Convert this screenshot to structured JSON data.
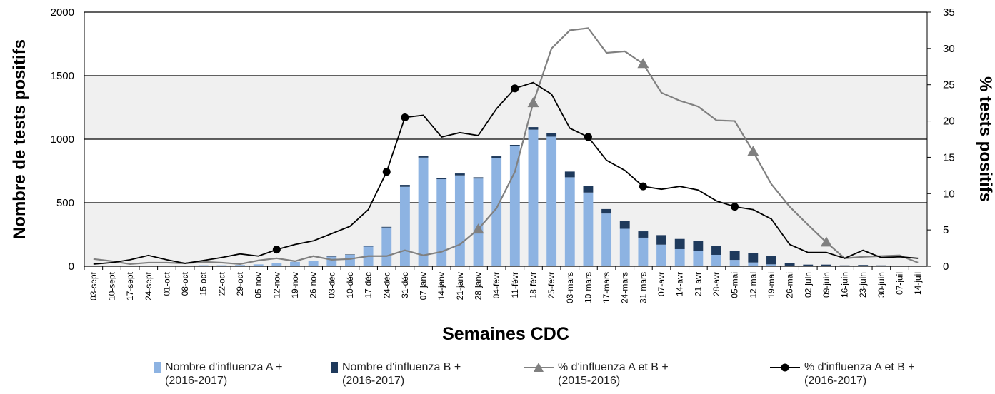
{
  "chart_data": {
    "type": "bar",
    "stacked": true,
    "x_label": "Semaines CDC",
    "y_label": "Nombre de tests positifs",
    "y2_label": "% tests positifs",
    "categories": [
      "03-sept",
      "10-sept",
      "17-sept",
      "24-sept",
      "01-oct",
      "08-oct",
      "15-oct",
      "22-oct",
      "29-oct",
      "05-nov",
      "12-nov",
      "19-nov",
      "26-nov",
      "03-déc",
      "10-déc",
      "17-déc",
      "24-déc",
      "31-déc",
      "07-janv",
      "14-janv",
      "21-janv",
      "28-janv",
      "04-févr",
      "11-févr",
      "18-févr",
      "25-févr",
      "03-mars",
      "10-mars",
      "17-mars",
      "24-mars",
      "31-mars",
      "07-avr",
      "14-avr",
      "21-avr",
      "28-avr",
      "05-mai",
      "12-mai",
      "19-mai",
      "26-mai",
      "02-juin",
      "09-juin",
      "16-juin",
      "23-juin",
      "30-juin",
      "07-juil",
      "14-juil"
    ],
    "ylim": [
      0,
      2000
    ],
    "yticks": [
      0,
      500,
      1000,
      1500,
      2000
    ],
    "y2lim": [
      0,
      35
    ],
    "y2ticks": [
      0,
      5,
      10,
      15,
      20,
      25,
      30,
      35
    ],
    "grid": true,
    "band_color": "#f0f0f0",
    "series": [
      {
        "name": "Nombre d'influenza A + (2016-2017)",
        "type": "bar",
        "color": "#8db3e2",
        "values": [
          2,
          3,
          3,
          5,
          5,
          5,
          8,
          8,
          10,
          15,
          25,
          35,
          45,
          75,
          90,
          155,
          305,
          625,
          855,
          685,
          715,
          690,
          850,
          945,
          1075,
          1020,
          700,
          580,
          415,
          295,
          225,
          170,
          135,
          120,
          90,
          50,
          30,
          15,
          5,
          3,
          3,
          2,
          2,
          2,
          2,
          2
        ]
      },
      {
        "name": "Nombre d'influenza B + (2016-2017)",
        "type": "bar",
        "color": "#1f3a5c",
        "values": [
          0,
          0,
          0,
          0,
          0,
          0,
          0,
          0,
          0,
          0,
          0,
          0,
          0,
          3,
          3,
          5,
          5,
          15,
          10,
          10,
          15,
          10,
          15,
          10,
          20,
          25,
          45,
          50,
          35,
          60,
          50,
          75,
          80,
          80,
          70,
          70,
          75,
          65,
          20,
          10,
          10,
          5,
          8,
          5,
          3,
          3
        ]
      },
      {
        "name": "% d'influenza A et B + (2015-2016)",
        "type": "line",
        "axis": "y2",
        "color": "#808080",
        "marker": "triangle",
        "values": [
          1.0,
          0.7,
          0.3,
          0.5,
          0.5,
          0.4,
          0.6,
          0.5,
          0.3,
          0.8,
          1.1,
          0.7,
          1.4,
          0.9,
          1.0,
          1.4,
          1.4,
          2.2,
          1.5,
          2.0,
          3.0,
          5.1,
          8.0,
          13,
          22.5,
          30,
          32.5,
          32.8,
          29.4,
          29.6,
          27.9,
          23.9,
          22.8,
          22.0,
          20.1,
          20.0,
          15.8,
          11.3,
          8.2,
          5.7,
          3.3,
          1.1,
          1.3,
          1.4,
          1.5,
          0.5
        ]
      },
      {
        "name": "% d'influenza A et B + (2016-2017)",
        "type": "line",
        "axis": "y2",
        "color": "#000000",
        "marker": "circle",
        "values": [
          0.3,
          0.5,
          0.9,
          1.5,
          0.9,
          0.4,
          0.8,
          1.2,
          1.7,
          1.4,
          2.3,
          3.0,
          3.5,
          4.5,
          5.5,
          7.8,
          13,
          20.5,
          20.8,
          17.8,
          18.4,
          18.0,
          21.7,
          24.5,
          25.3,
          23.7,
          19,
          17.8,
          14.6,
          13.2,
          11.0,
          10.6,
          11.0,
          10.5,
          9.0,
          8.2,
          7.8,
          6.5,
          3.0,
          1.9,
          1.9,
          1.1,
          2.2,
          1.2,
          1.3,
          1.1
        ]
      }
    ]
  }
}
